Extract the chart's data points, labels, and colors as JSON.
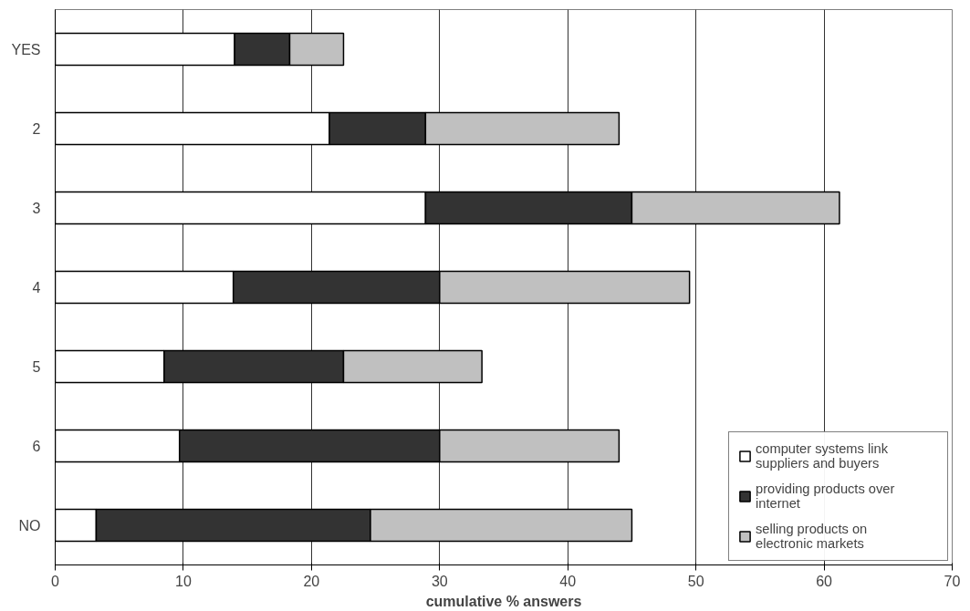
{
  "chart_data": {
    "type": "bar",
    "orientation": "horizontal",
    "stacked": true,
    "xlabel": "cumulative % answers",
    "categories": [
      "YES",
      "2",
      "3",
      "4",
      "5",
      "6",
      "NO"
    ],
    "series": [
      {
        "name": "computer systems link suppliers and buyers",
        "color": "#ffffff",
        "values": [
          14,
          21.4,
          28.9,
          13.9,
          8.5,
          9.7,
          3.2
        ]
      },
      {
        "name": "providing products over internet",
        "color": "#333333",
        "values": [
          4.3,
          7.5,
          16.1,
          16.1,
          14,
          20.3,
          21.4
        ]
      },
      {
        "name": "selling products on electronic markets",
        "color": "#c0c0c0",
        "values": [
          4.2,
          15.1,
          16.2,
          19.5,
          10.8,
          14,
          20.4
        ]
      }
    ],
    "xlim": [
      0,
      70
    ],
    "xticks": [
      0,
      10,
      20,
      30,
      40,
      50,
      60,
      70
    ],
    "grid": "x",
    "legend": "bottom right"
  }
}
